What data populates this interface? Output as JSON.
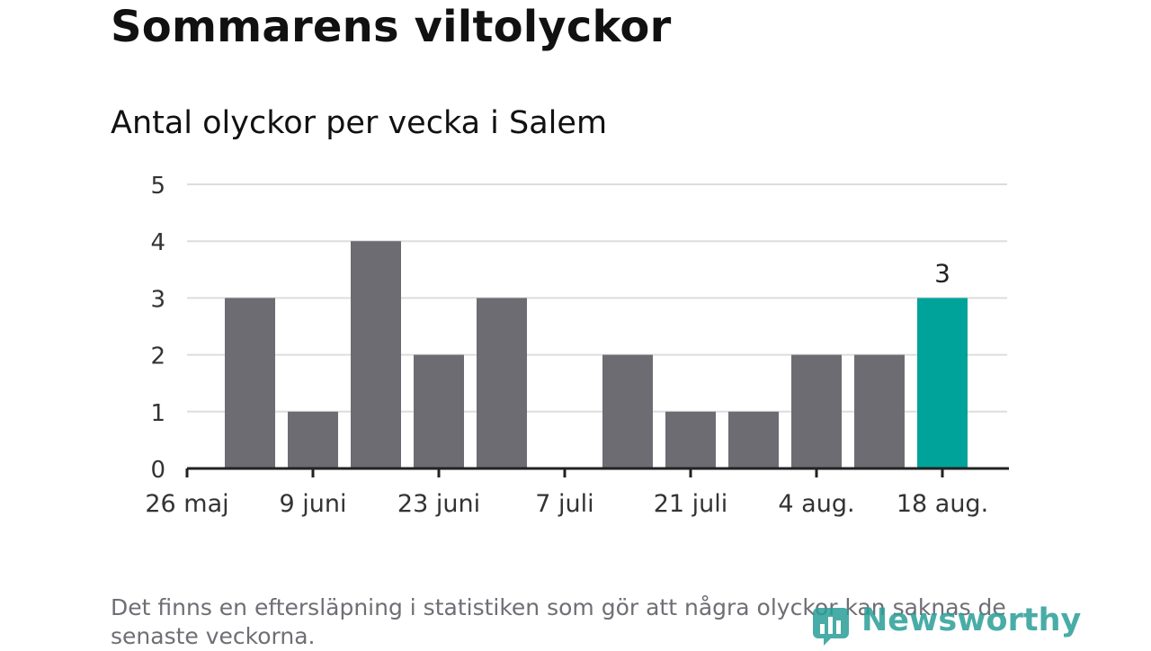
{
  "title": "Sommarens viltolyckor",
  "subtitle": "Antal olyckor per vecka i Salem",
  "chart_data": {
    "type": "bar",
    "categories": [
      "26 maj",
      "2 juni",
      "9 juni",
      "16 juni",
      "23 juni",
      "30 juni",
      "7 juli",
      "14 juli",
      "21 juli",
      "28 juli",
      "4 aug.",
      "11 aug.",
      "18 aug."
    ],
    "values": [
      0,
      3,
      1,
      4,
      2,
      3,
      0,
      2,
      1,
      1,
      2,
      2,
      3
    ],
    "x_tick_labels": [
      "26 maj",
      "9 juni",
      "23 juni",
      "7 juli",
      "21 juli",
      "4 aug.",
      "18 aug."
    ],
    "y_ticks": [
      0,
      1,
      2,
      3,
      4,
      5
    ],
    "ylim": [
      0,
      5
    ],
    "grid": true,
    "highlight_index": 12,
    "data_labels": [
      {
        "index": 12,
        "text": "3"
      }
    ],
    "colors": {
      "bar": "#6d6c72",
      "highlight": "#00a39a",
      "grid": "#dddddd",
      "axis": "#222222"
    }
  },
  "footnote": "Det finns en eftersläpning i statistiken som gör att några olyckor kan saknas de senaste veckorna.",
  "logo": {
    "text": "Newsworthy",
    "color": "#2a9e97",
    "icon": "bar-chart-icon"
  }
}
